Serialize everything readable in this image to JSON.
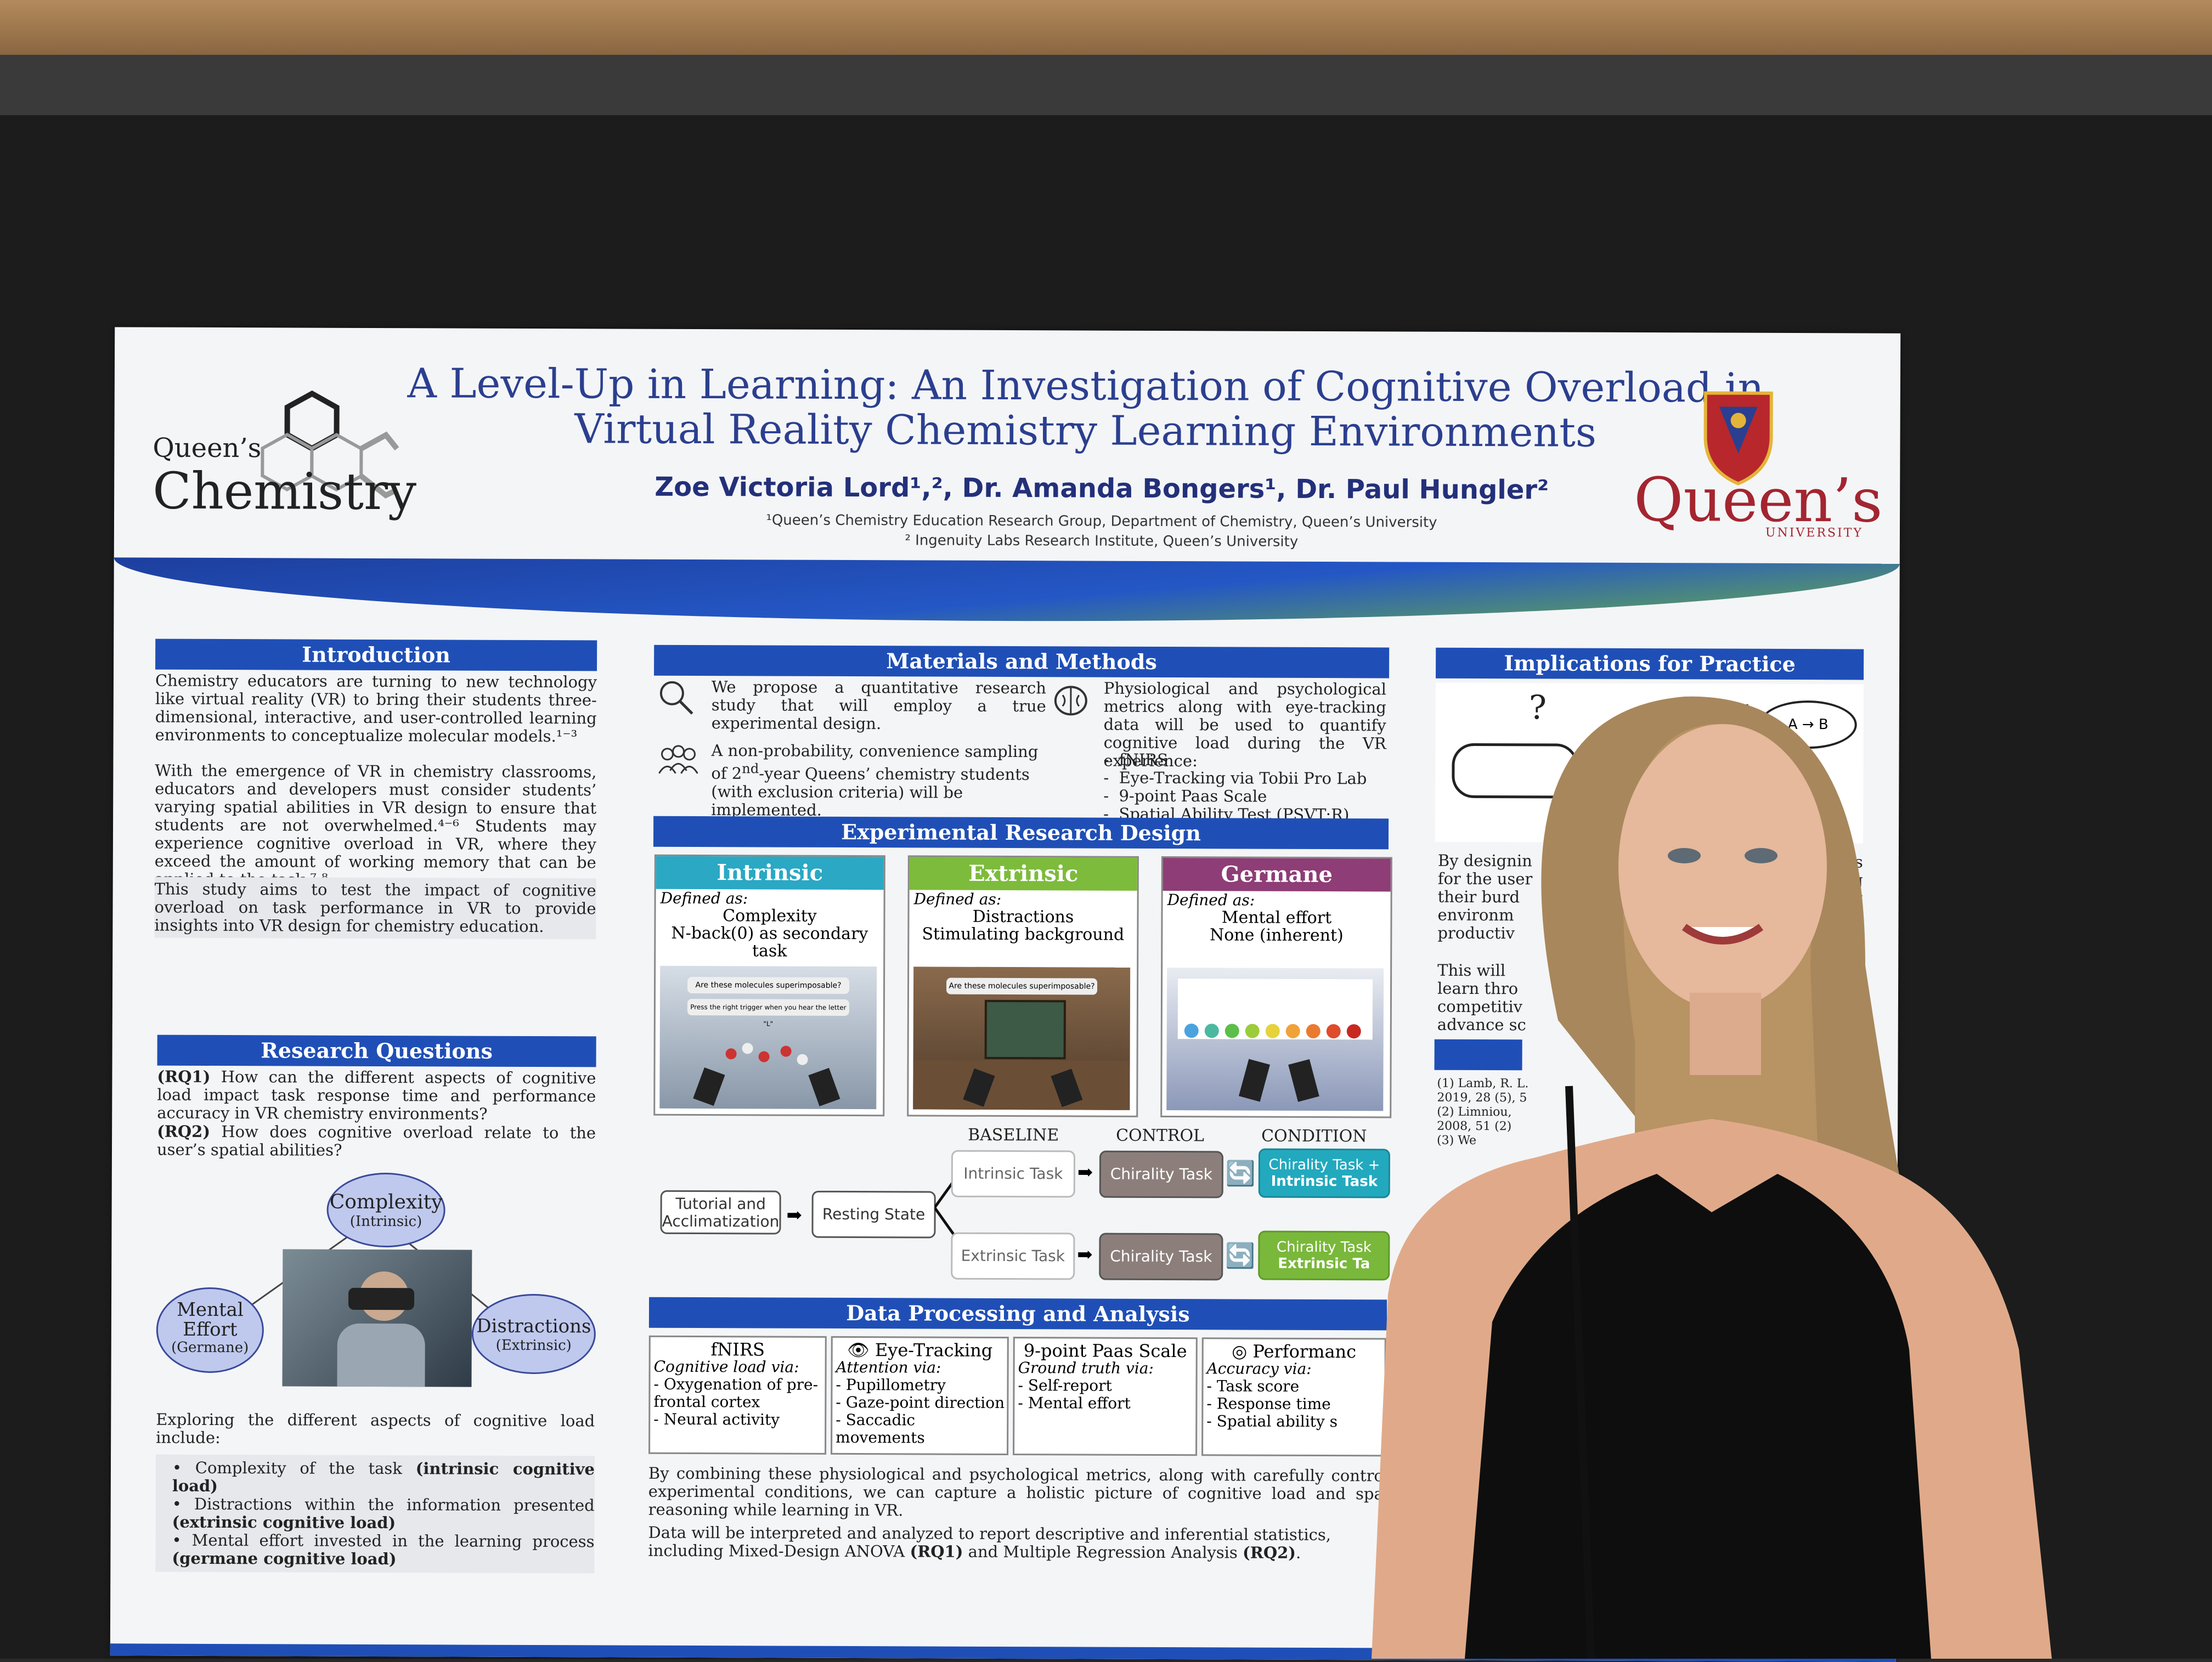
{
  "poster": {
    "title_line1": "A Level-Up in Learning: An Investigation of Cognitive Overload in",
    "title_line2": "Virtual Reality Chemistry Learning Environments",
    "authors": "Zoe Victoria Lord¹,², Dr. Amanda Bongers¹, Dr. Paul Hungler²",
    "affiliation1": "¹Queen’s Chemistry Education Research Group, Department of Chemistry, Queen’s University",
    "affiliation2": "² Ingenuity Labs Research Institute, Queen’s University",
    "logo_left_small": "Queen’s",
    "logo_left_big": "Chemistry",
    "logo_right_big": "Queen’s",
    "logo_right_small": "UNIVERSITY"
  },
  "intro": {
    "heading": "Introduction",
    "p1": "Chemistry educators are turning to new technology like virtual reality (VR) to bring their students three-dimensional, interactive, and user-controlled learning environments to conceptualize molecular models.¹⁻³",
    "p2": "With the emergence of VR in chemistry classrooms, educators and developers must consider students’ varying spatial abilities in VR design to ensure that students are not overwhelmed.⁴⁻⁶ Students may experience cognitive overload in VR, where they exceed the amount of working memory that can be applied to the task.⁷,⁸",
    "p3": "This study aims to test the impact of cognitive overload on task performance in VR to provide insights into VR design for chemistry education."
  },
  "rq": {
    "heading": "Research Questions",
    "rq1_label": "(RQ1)",
    "rq1": "How can the different aspects of cognitive load impact task response time and performance accuracy in VR chemistry environments?",
    "rq2_label": "(RQ2)",
    "rq2": "How does cognitive overload relate to the user’s spatial abilities?",
    "bubble_complexity": "Complexity",
    "bubble_complexity_sub": "(Intrinsic)",
    "bubble_mental": "Mental Effort",
    "bubble_mental_sub": "(Germane)",
    "bubble_distractions": "Distractions",
    "bubble_distractions_sub": "(Extrinsic)",
    "exploring": "Exploring the different aspects of cognitive load include:",
    "b1a": "Complexity of the task ",
    "b1b": "(intrinsic cognitive load)",
    "b2a": "Distractions within the information presented ",
    "b2b": "(extrinsic cognitive load)",
    "b3a": "Mental effort invested in the learning process ",
    "b3b": "(germane cognitive load)"
  },
  "methods": {
    "heading": "Materials and Methods",
    "m1": "We propose a quantitative research study that will employ a true experimental design.",
    "m2a": "A non-probability, convenience sampling of 2",
    "m2sup": "nd",
    "m2b": "-year Queens’ chemistry students (with exclusion criteria) will be implemented.",
    "m3": "Physiological and psychological metrics along with eye-tracking data will be used to quantify cognitive load during the VR experience:",
    "list": [
      "fNIRS",
      "Eye-Tracking via Tobii Pro Lab",
      "9-point Paas Scale",
      "Spatial Ability Test (PSVT:R)"
    ]
  },
  "erd": {
    "heading": "Experimental Research Design",
    "defined": "Defined as:",
    "intrinsic_title": "Intrinsic",
    "intrinsic_l1": "Complexity",
    "intrinsic_l2": "N-back(0) as secondary task",
    "intrinsic_q": "Are these molecules superimposable?",
    "intrinsic_q2": "Press the right trigger when you hear the letter \"L\"",
    "extrinsic_title": "Extrinsic",
    "extrinsic_l1": "Distractions",
    "extrinsic_l2": "Stimulating background",
    "extrinsic_q": "Are these molecules superimposable?",
    "germane_title": "Germane",
    "germane_l1": "Mental effort",
    "germane_l2": "None (inherent)",
    "baseline": "BASELINE",
    "control": "CONTROL",
    "condition": "CONDITION",
    "tutorial": "Tutorial and Acclimatization",
    "resting": "Resting State",
    "intrinsic_task": "Intrinsic Task",
    "extrinsic_task": "Extrinsic Task",
    "chirality1": "Chirality Task",
    "chirality2": "Chirality Task",
    "cond1a": "Chirality Task +",
    "cond1b": "Intrinsic Task",
    "cond2a": "Chirality Task",
    "cond2b": "Extrinsic Ta"
  },
  "dpa": {
    "heading": "Data Processing and Analysis",
    "c1_title": "fNIRS",
    "c1_sub": "Cognitive load via:",
    "c1_items": [
      "- Oxygenation of pre-frontal cortex",
      "- Neural activity"
    ],
    "c2_title": "Eye-Tracking",
    "c2_sub": "Attention via:",
    "c2_items": [
      "- Pupillometry",
      "- Gaze-point direction",
      "- Saccadic movements"
    ],
    "c3_title": "9-point Paas Scale",
    "c3_sub": "Ground truth via:",
    "c3_items": [
      "- Self-report",
      "- Mental effort"
    ],
    "c4_title": "Performanc",
    "c4_sub": "Accuracy via:",
    "c4_items": [
      "- Task score",
      "- Response time",
      "- Spatial ability s"
    ],
    "p1": "By combining these physiological and psychological metrics, along with carefully contro experimental conditions, we can capture a holistic picture of cognitive load and spa reasoning while learning in VR.",
    "p2a": "Data will be interpreted and analyzed to report descriptive and inferential statistics, including Mixed-Design ANOVA ",
    "p2b": "(RQ1)",
    "p2c": " and Multiple Regression Analysis ",
    "p2d": "(RQ2)",
    "p2e": "."
  },
  "impl": {
    "heading": "Implications for Practice",
    "p_lines": [
      "By designin",
      "for the user",
      "their burd",
      "environm",
      "productiv"
    ],
    "p2_lines": [
      "This will",
      "learn thro",
      "competitiv",
      "advance sc"
    ],
    "right_frag": [
      "nts",
      "g",
      "g",
      "d"
    ],
    "refs": [
      "(1) Lamb, R. L.",
      "2019, 28 (5), 5",
      "(2) Limniou,",
      "2008, 51 (2)",
      "(3) We"
    ],
    "arrow_a": "A",
    "arrow_b": "B"
  },
  "colors": {
    "header_blue": "#1f4fb6",
    "intrinsic": "#2aa8c4",
    "extrinsic": "#7dbb3c",
    "germane": "#8e3d76",
    "condition_teal": "#22a9be",
    "condition_green": "#79b83a",
    "control_gray": "#8c7f7b"
  }
}
